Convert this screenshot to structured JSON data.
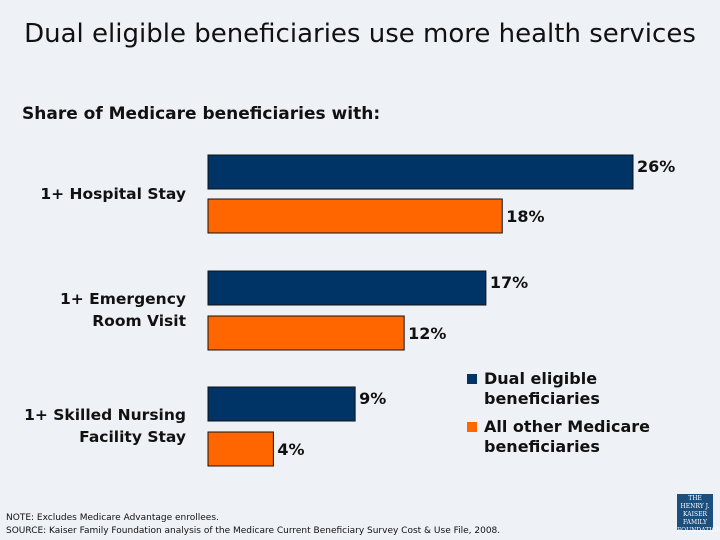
{
  "chart_data": {
    "type": "bar",
    "orientation": "horizontal",
    "title": "Dual eligible beneficiaries use more health services",
    "subtitle": "Share of Medicare beneficiaries with:",
    "categories": [
      [
        "1+ Hospital Stay"
      ],
      [
        "1+ Emergency",
        "Room Visit"
      ],
      [
        "1+ Skilled Nursing",
        "Facility Stay"
      ]
    ],
    "series": [
      {
        "name": "Dual eligible beneficiaries",
        "name_lines": [
          "Dual eligible",
          "beneficiaries"
        ],
        "values": [
          26,
          17,
          9
        ],
        "labels": [
          "26%",
          "17%",
          "9%"
        ],
        "color": "#003366"
      },
      {
        "name": "All other Medicare beneficiaries",
        "name_lines": [
          "All other Medicare",
          "beneficiaries"
        ],
        "values": [
          18,
          12,
          4
        ],
        "labels": [
          "18%",
          "12%",
          "4%"
        ],
        "color": "#ff6600"
      }
    ],
    "xlim": [
      0,
      26
    ],
    "grid": false,
    "legend": "bottom-right"
  },
  "note": "NOTE: Excludes Medicare Advantage enrollees.",
  "source": "SOURCE: Kaiser Family Foundation analysis of the Medicare Current Beneficiary Survey Cost & Use File, 2008.",
  "logo": "THE HENRY J. KAISER FAMILY FOUNDATION"
}
